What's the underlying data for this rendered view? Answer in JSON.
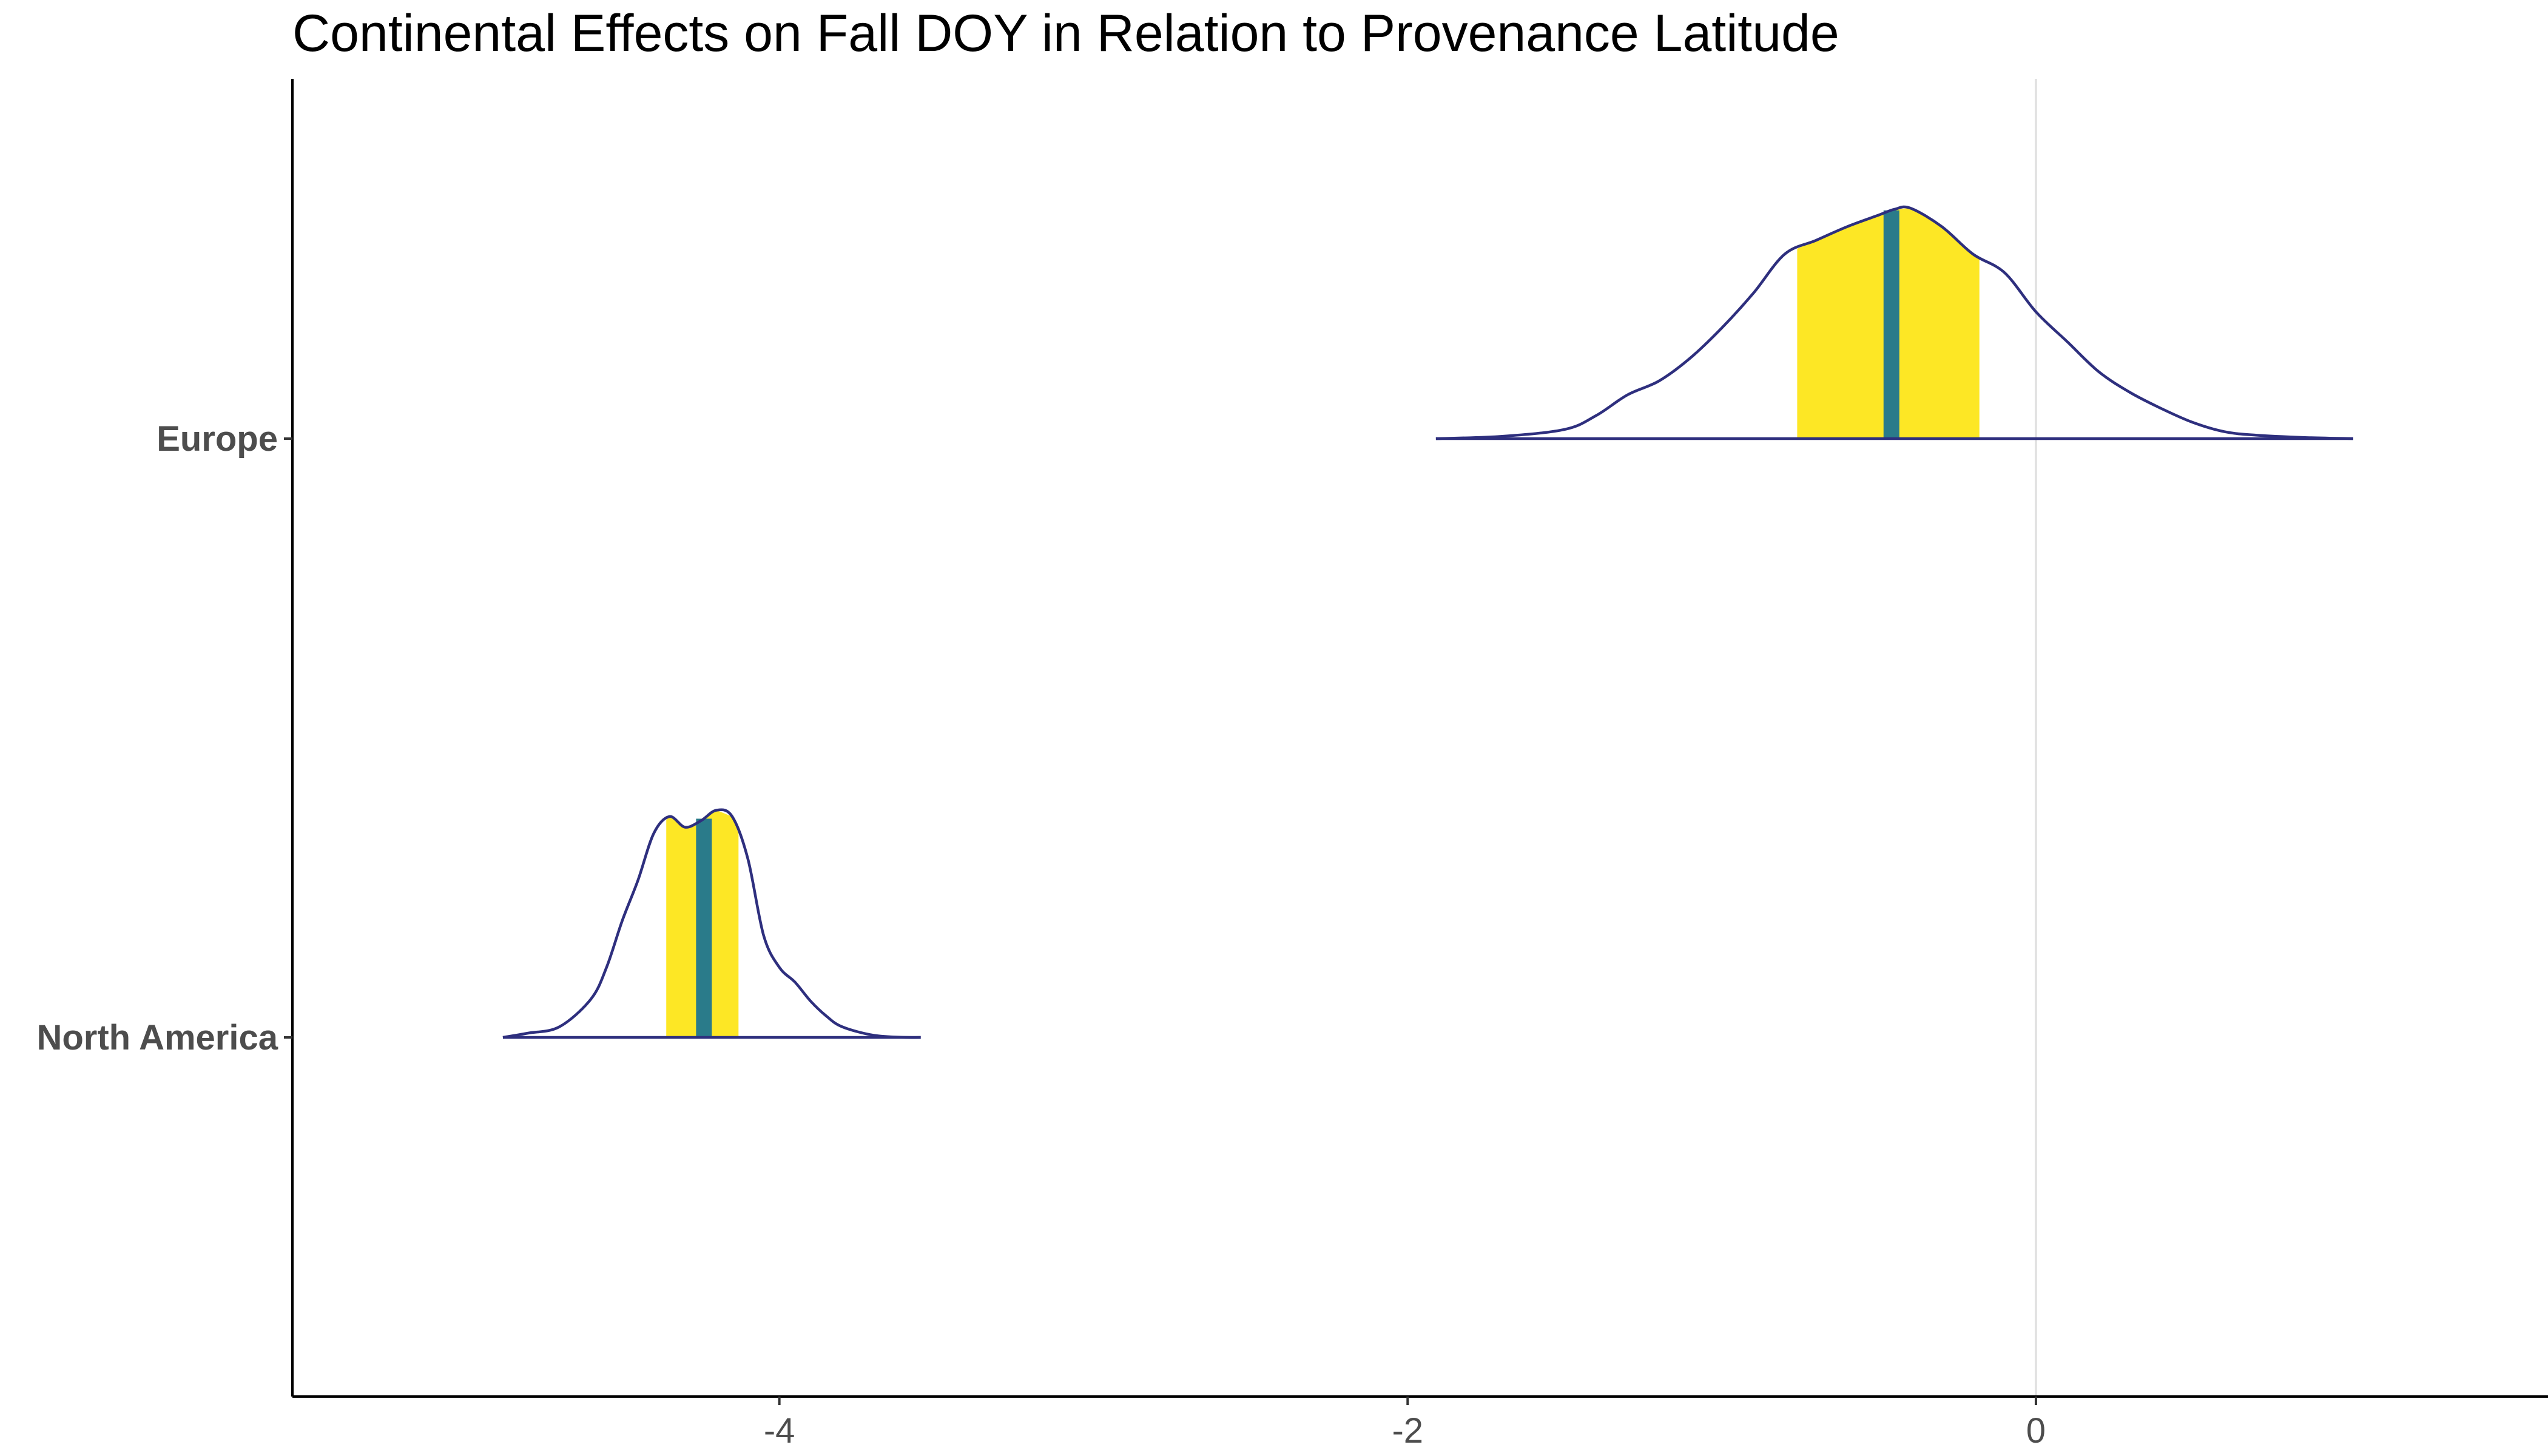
{
  "chart_data": {
    "type": "density_ridges",
    "title": "Continental Effects on Fall DOY in Relation to Provenance Latitude",
    "xlabel": "",
    "ylabel": "",
    "xlim": [
      -5.55,
      1.63
    ],
    "x_ticks": [
      -4,
      -2,
      0
    ],
    "x_tick_labels": [
      "-4",
      "-2",
      "0"
    ],
    "reference_line_x": 0,
    "grid": false,
    "legend": "none",
    "colors": {
      "density_outline": "#2E2F7E",
      "interval_fill": "#FDE725",
      "median_line": "#2A7B8A",
      "axis": "#000000",
      "reference_line": "#E2E2E2"
    },
    "categories": [
      "Europe",
      "North America"
    ],
    "series": [
      {
        "name": "Europe",
        "median": -0.46,
        "interval": [
          -0.76,
          -0.18
        ],
        "x": [
          -1.91,
          -1.7,
          -1.5,
          -1.4,
          -1.3,
          -1.2,
          -1.1,
          -1.0,
          -0.9,
          -0.8,
          -0.7,
          -0.6,
          -0.5,
          -0.45,
          -0.4,
          -0.3,
          -0.2,
          -0.1,
          0.0,
          0.1,
          0.2,
          0.3,
          0.4,
          0.5,
          0.6,
          0.7,
          0.85,
          1.01
        ],
        "density": [
          0.0,
          0.01,
          0.04,
          0.1,
          0.19,
          0.25,
          0.35,
          0.48,
          0.63,
          0.8,
          0.86,
          0.92,
          0.97,
          0.995,
          1.0,
          0.92,
          0.8,
          0.72,
          0.55,
          0.42,
          0.29,
          0.2,
          0.13,
          0.07,
          0.03,
          0.015,
          0.005,
          0.0
        ]
      },
      {
        "name": "North America",
        "median": -4.24,
        "interval": [
          -4.36,
          -4.13
        ],
        "x": [
          -4.88,
          -4.8,
          -4.7,
          -4.6,
          -4.55,
          -4.5,
          -4.45,
          -4.4,
          -4.35,
          -4.3,
          -4.25,
          -4.2,
          -4.15,
          -4.1,
          -4.05,
          -4.0,
          -3.95,
          -3.9,
          -3.85,
          -3.8,
          -3.7,
          -3.6,
          -3.55
        ],
        "density": [
          0.0,
          0.02,
          0.05,
          0.18,
          0.33,
          0.55,
          0.74,
          0.96,
          1.04,
          0.99,
          1.02,
          1.07,
          1.04,
          0.84,
          0.48,
          0.33,
          0.26,
          0.17,
          0.1,
          0.05,
          0.01,
          0.0,
          0.0
        ]
      }
    ]
  }
}
